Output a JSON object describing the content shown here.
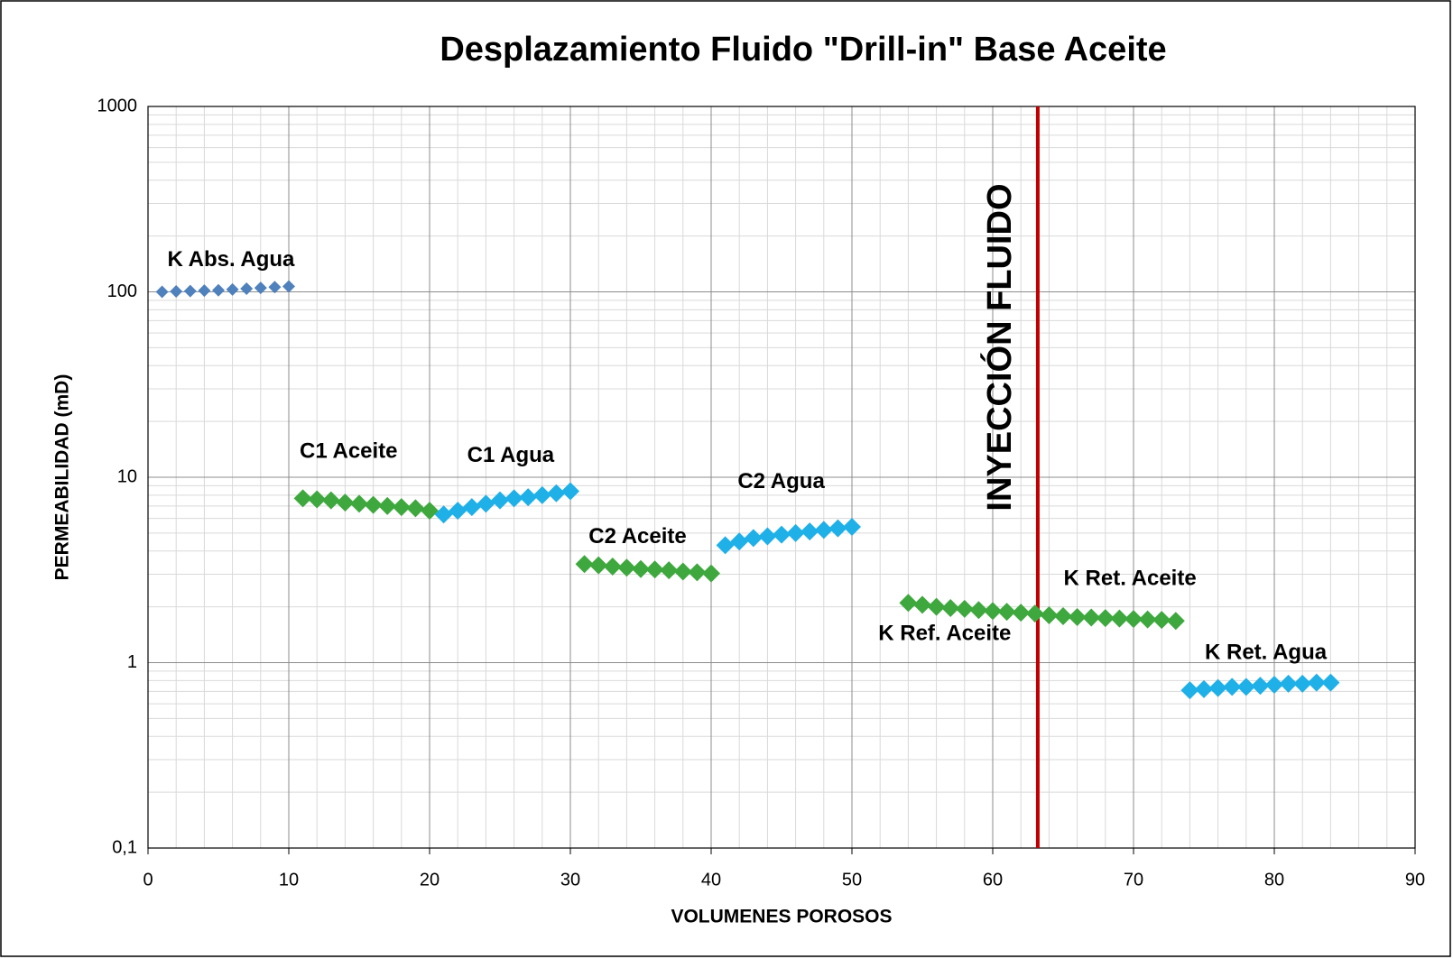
{
  "chart_data": {
    "type": "scatter",
    "title": "Desplazamiento Fluido \"Drill-in\" Base Aceite",
    "x_label": "VOLUMENES POROSOS",
    "y_label": "PERMEABILIDAD (mD)",
    "log_y": true,
    "grid": true,
    "xlim": [
      0,
      90
    ],
    "xticks": [
      0,
      10,
      20,
      30,
      40,
      50,
      60,
      70,
      80,
      90
    ],
    "ylim": [
      0.1,
      1000
    ],
    "yticks": [
      {
        "value": 0.1,
        "label": "0,1"
      },
      1,
      10,
      100,
      1000
    ],
    "vline": {
      "x": 63.2,
      "label": "INYECCIÓN FLUIDO",
      "color": "#c00000"
    },
    "series": [
      {
        "name": "K Abs. Agua",
        "color": "#4f81bd",
        "x": [
          1,
          2,
          3,
          4,
          5,
          6,
          7,
          8,
          9,
          10
        ],
        "values": [
          100,
          100.5,
          101,
          101.5,
          102,
          103,
          104,
          105,
          106,
          107
        ]
      },
      {
        "name": "C1 Aceite",
        "color": "#3ea83e",
        "x": [
          11,
          12,
          13,
          14,
          15,
          16,
          17,
          18,
          19,
          20
        ],
        "values": [
          7.7,
          7.6,
          7.5,
          7.3,
          7.2,
          7.1,
          7.0,
          6.9,
          6.8,
          6.6
        ]
      },
      {
        "name": "C1 Agua",
        "color": "#1fb0e8",
        "x": [
          21,
          22,
          23,
          24,
          25,
          26,
          27,
          28,
          29,
          30
        ],
        "values": [
          6.3,
          6.6,
          6.9,
          7.2,
          7.5,
          7.7,
          7.8,
          8.0,
          8.2,
          8.4
        ]
      },
      {
        "name": "C2 Aceite",
        "color": "#3ea83e",
        "x": [
          31,
          32,
          33,
          34,
          35,
          36,
          37,
          38,
          39,
          40
        ],
        "values": [
          3.4,
          3.35,
          3.3,
          3.25,
          3.2,
          3.18,
          3.15,
          3.1,
          3.07,
          3.03
        ]
      },
      {
        "name": "C2 Agua",
        "color": "#1fb0e8",
        "x": [
          41,
          42,
          43,
          44,
          45,
          46,
          47,
          48,
          49,
          50
        ],
        "values": [
          4.3,
          4.5,
          4.7,
          4.8,
          4.9,
          5.0,
          5.1,
          5.2,
          5.3,
          5.4
        ]
      },
      {
        "name": "K Ref. Aceite",
        "color": "#3ea83e",
        "x": [
          54,
          55,
          56,
          57,
          58,
          59,
          60,
          61,
          62,
          63
        ],
        "values": [
          2.1,
          2.05,
          2.0,
          1.97,
          1.95,
          1.92,
          1.9,
          1.88,
          1.86,
          1.84
        ]
      },
      {
        "name": "K Ret. Aceite",
        "color": "#3ea83e",
        "x": [
          64,
          65,
          66,
          67,
          68,
          69,
          70,
          71,
          72,
          73
        ],
        "values": [
          1.8,
          1.78,
          1.76,
          1.75,
          1.74,
          1.73,
          1.72,
          1.71,
          1.7,
          1.68
        ]
      },
      {
        "name": "K Ret. Agua",
        "color": "#1fb0e8",
        "x": [
          74,
          75,
          76,
          77,
          78,
          79,
          80,
          81,
          82,
          83,
          84
        ],
        "values": [
          0.71,
          0.72,
          0.73,
          0.74,
          0.74,
          0.75,
          0.76,
          0.77,
          0.77,
          0.78,
          0.78
        ]
      }
    ]
  }
}
